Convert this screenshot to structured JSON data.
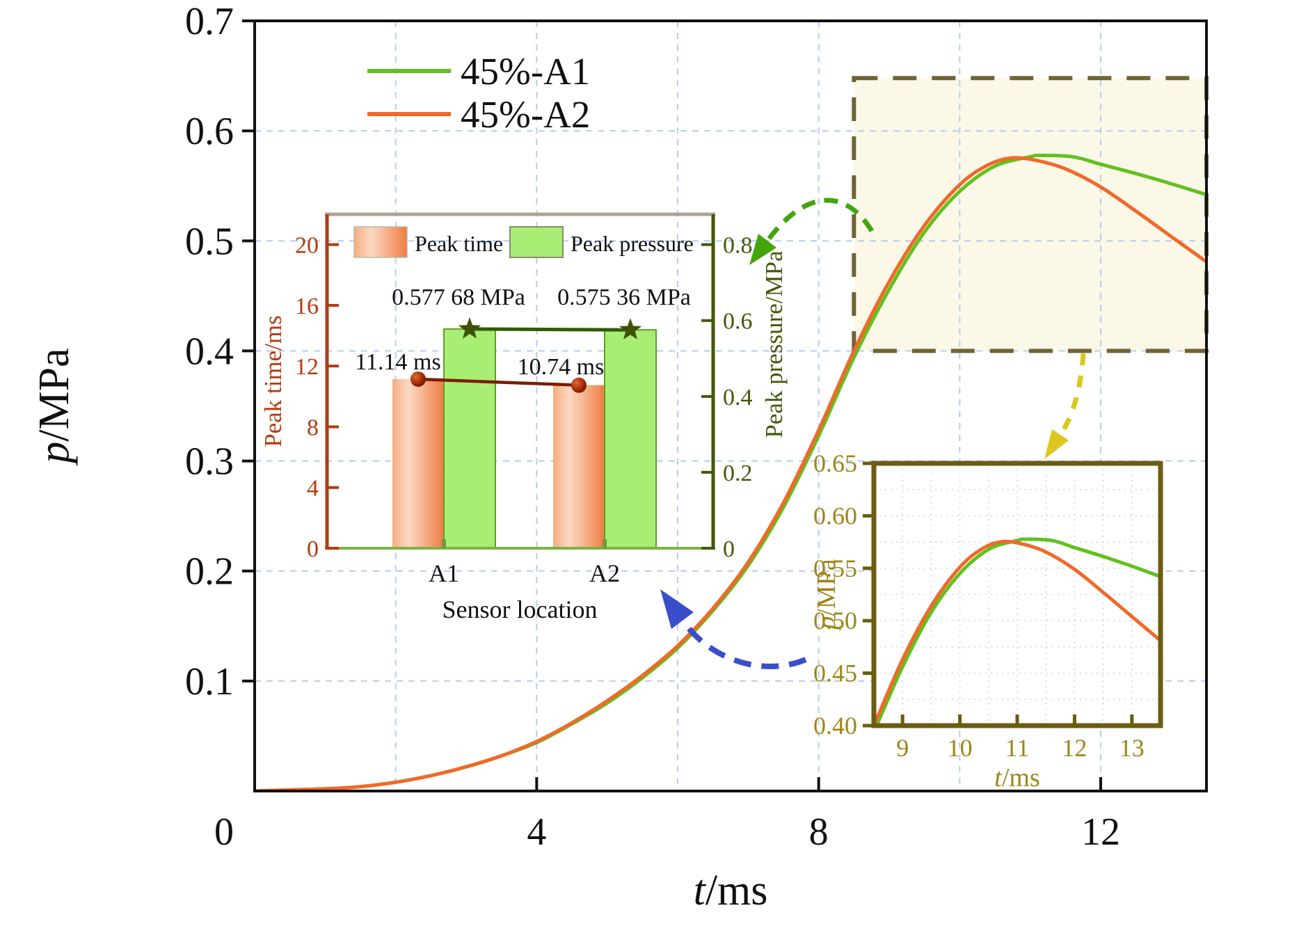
{
  "figure": {
    "background": "#ffffff",
    "grid_color": "#b9cbee",
    "frame_color": "#111111",
    "zoom_region_fill": "#fbf8e8",
    "zoom_region_border": "#6f6434",
    "arrow_colors": {
      "to_bar_inset_top": "#41a60b",
      "to_zoom_inset": "#ddc61f",
      "to_bar_inset_bottom": "#3a4ecb"
    }
  },
  "chart_data": [
    {
      "type": "line",
      "title": "",
      "xlabel": "t/ms",
      "xlabel_var": "t",
      "xlabel_unit": "/ms",
      "ylabel": "p/MPa",
      "ylabel_var": "p",
      "ylabel_unit": "/MPa",
      "xlim": [
        0,
        13.5
      ],
      "ylim": [
        0,
        0.7
      ],
      "xticks": [
        0,
        4,
        8,
        12
      ],
      "yticks": [
        0.1,
        0.2,
        0.3,
        0.4,
        0.5,
        0.6,
        0.7
      ],
      "grid_x": [
        2,
        4,
        6,
        8,
        10,
        12
      ],
      "grid_y": [
        0.1,
        0.2,
        0.3,
        0.4,
        0.5,
        0.6
      ],
      "legend_position": "upper-left-inside",
      "zoom_region": {
        "t": [
          8.5,
          13.5
        ],
        "p": [
          0.4,
          0.648
        ]
      },
      "series": [
        {
          "name": "45%-A1",
          "color": "#61c11d",
          "points": [
            [
              0,
              0
            ],
            [
              0.5,
              0.001
            ],
            [
              1,
              0.002
            ],
            [
              1.5,
              0.004
            ],
            [
              2,
              0.008
            ],
            [
              2.5,
              0.014
            ],
            [
              3,
              0.022
            ],
            [
              3.5,
              0.032
            ],
            [
              4,
              0.044
            ],
            [
              4.5,
              0.061
            ],
            [
              5,
              0.08
            ],
            [
              5.5,
              0.103
            ],
            [
              6,
              0.13
            ],
            [
              6.5,
              0.164
            ],
            [
              7,
              0.205
            ],
            [
              7.5,
              0.258
            ],
            [
              8,
              0.323
            ],
            [
              8.5,
              0.394
            ],
            [
              9,
              0.456
            ],
            [
              9.5,
              0.508
            ],
            [
              10,
              0.545
            ],
            [
              10.5,
              0.568
            ],
            [
              11,
              0.5765
            ],
            [
              11.14,
              0.5777
            ],
            [
              11.6,
              0.5765
            ],
            [
              12,
              0.5697
            ],
            [
              12.5,
              0.5612
            ],
            [
              13,
              0.552
            ],
            [
              13.5,
              0.542
            ]
          ]
        },
        {
          "name": "45%-A2",
          "color": "#f2682a",
          "points": [
            [
              0,
              0
            ],
            [
              0.5,
              0.001
            ],
            [
              1,
              0.002
            ],
            [
              1.5,
              0.004
            ],
            [
              2,
              0.008
            ],
            [
              2.5,
              0.014
            ],
            [
              3,
              0.022
            ],
            [
              3.5,
              0.032
            ],
            [
              4,
              0.045
            ],
            [
              4.5,
              0.062
            ],
            [
              5,
              0.082
            ],
            [
              5.5,
              0.105
            ],
            [
              6,
              0.132
            ],
            [
              6.5,
              0.166
            ],
            [
              7,
              0.208
            ],
            [
              7.5,
              0.262
            ],
            [
              8,
              0.328
            ],
            [
              8.5,
              0.4
            ],
            [
              9,
              0.463
            ],
            [
              9.5,
              0.514
            ],
            [
              10,
              0.551
            ],
            [
              10.4,
              0.569
            ],
            [
              10.74,
              0.5754
            ],
            [
              11.1,
              0.573
            ],
            [
              11.5,
              0.5655
            ],
            [
              12,
              0.549
            ],
            [
              12.5,
              0.527
            ],
            [
              13,
              0.504
            ],
            [
              13.5,
              0.481
            ]
          ]
        }
      ]
    },
    {
      "type": "bar",
      "categories": [
        "A1",
        "A2"
      ],
      "xlabel": "Sensor location",
      "ylabel_left": "Peak time/ms",
      "ylabel_right": "Peak pressure/MPa",
      "ylim_left": [
        0,
        22
      ],
      "ylim_right": [
        0,
        0.88
      ],
      "yticks_left": [
        0,
        4,
        8,
        12,
        16,
        20
      ],
      "yticks_right": [
        0,
        0.2,
        0.4,
        0.6,
        0.8
      ],
      "series": [
        {
          "name": "Peak time",
          "axis": "left",
          "unit": "ms",
          "values": [
            11.14,
            10.74
          ],
          "fill": "gradient-orange",
          "marker": "sphere",
          "marker_color": "#7d1c02"
        },
        {
          "name": "Peak pressure",
          "axis": "right",
          "unit": "MPa",
          "values": [
            0.57768,
            0.57536
          ],
          "fill": "#a9ee74",
          "marker": "star",
          "marker_color": "#3f5202"
        }
      ],
      "annotations": {
        "time": [
          "11.14 ms",
          "10.74 ms"
        ],
        "pressure": [
          "0.577 68 MPa",
          "0.575 36 MPa"
        ]
      },
      "spine_colors": {
        "left": "#b23a0e",
        "right": "#44570a",
        "top": "#b2a293",
        "bottom": "#79b445"
      }
    },
    {
      "type": "line",
      "role": "zoom-inset",
      "xlabel": "t/ms",
      "xlabel_var": "t",
      "xlabel_unit": "/ms",
      "ylabel": "p/MPa",
      "ylabel_var": "p",
      "ylabel_unit": "/MPa",
      "xlim": [
        8.5,
        13.5
      ],
      "ylim": [
        0.4,
        0.65
      ],
      "xticks": [
        9,
        10,
        11,
        12,
        13
      ],
      "yticks": [
        0.4,
        0.45,
        0.5,
        0.55,
        0.6,
        0.65
      ],
      "grid": "fine dotted every 0.5 ms / 0.025 MPa",
      "series_ref": "main",
      "frame_color": "#6b5c10"
    }
  ]
}
